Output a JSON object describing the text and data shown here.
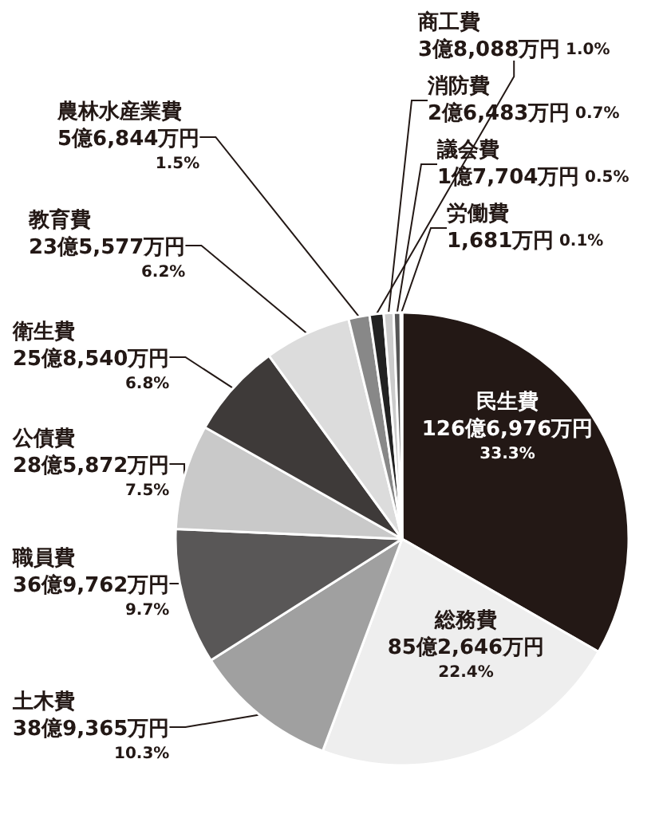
{
  "chart_data": {
    "type": "pie",
    "categories": [
      "民生費",
      "総務費",
      "土木費",
      "職員費",
      "公債費",
      "衛生費",
      "教育費",
      "農林水産業費",
      "商工費",
      "消防費",
      "議会費",
      "労働費"
    ],
    "values": [
      33.3,
      22.4,
      10.3,
      9.7,
      7.5,
      6.8,
      6.2,
      1.5,
      1.0,
      0.7,
      0.5,
      0.1
    ],
    "colors": [
      "#231815",
      "#eeeeee",
      "#a0a0a0",
      "#595757",
      "#c9c9c9",
      "#3e3a39",
      "#dcdcdc",
      "#888888",
      "#222222",
      "#cccccc",
      "#555555",
      "#dddddd"
    ],
    "value_labels": [
      "126億6,976万円 33.3%",
      "85億2,646万円 22.4%",
      "38億9,365万円 10.3%",
      "36億9,762万円 9.7%",
      "28億5,872万円 7.5%",
      "25億8,540万円 6.8%",
      "23億5,577万円 6.2%",
      "5億6,844万円 1.5%",
      "3億8,088万円 1.0%",
      "2億6,483万円 0.7%",
      "1億7,704万円 0.5%",
      "1,681万円 0.1%"
    ]
  }
}
